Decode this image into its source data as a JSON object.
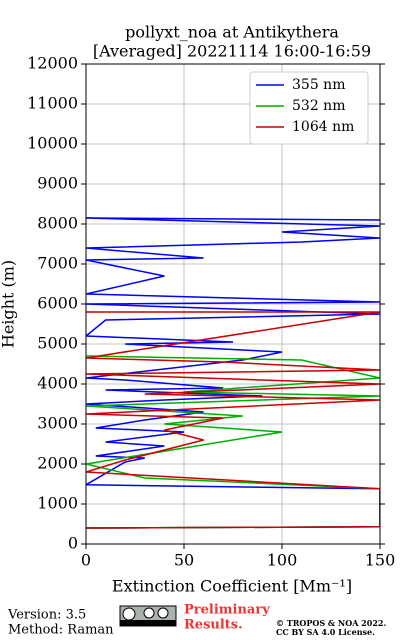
{
  "chart_data": {
    "type": "line",
    "title": "pollyxt_noa at Antikythera",
    "subtitle": "[Averaged] 20221114 16:00-16:59",
    "x_label": "Extinction Coefficient [Mm⁻¹]",
    "y_label": "Height (m)",
    "xlim": [
      0,
      150
    ],
    "xticks": [
      0,
      50,
      100,
      150
    ],
    "ylim": [
      0,
      12000
    ],
    "yticks": [
      0,
      1000,
      2000,
      3000,
      4000,
      5000,
      6000,
      7000,
      8000,
      9000,
      10000,
      11000,
      12000
    ],
    "grid": true,
    "legend": "upper right",
    "series": [
      {
        "name": "355 nm",
        "color": "#0000ff",
        "x": [
          0,
          150,
          150,
          0,
          20,
          30,
          5,
          40,
          10,
          50,
          5,
          30,
          60,
          0,
          40,
          90,
          10,
          70,
          20,
          0,
          80,
          100,
          20,
          75,
          0,
          10,
          150,
          0,
          150,
          0,
          40,
          0,
          60,
          0,
          110,
          150,
          100,
          150,
          0,
          150
        ],
        "y": [
          400,
          430,
          1380,
          1480,
          2050,
          2150,
          2200,
          2450,
          2550,
          2800,
          2900,
          3100,
          3300,
          3500,
          3600,
          3700,
          3850,
          3900,
          4100,
          4150,
          4600,
          4800,
          5000,
          5050,
          5200,
          5600,
          5750,
          6000,
          6050,
          6250,
          6700,
          7100,
          7150,
          7400,
          7550,
          7650,
          7800,
          7950,
          8150,
          8100
        ]
      },
      {
        "name": "532 nm",
        "color": "#00b000",
        "x": [
          0,
          150,
          150,
          30,
          0,
          50,
          100,
          40,
          80,
          0,
          150,
          50,
          150,
          110,
          0
        ],
        "y": [
          400,
          430,
          1380,
          1650,
          2000,
          2400,
          2800,
          3000,
          3200,
          3450,
          3700,
          3800,
          4150,
          4600,
          4700
        ]
      },
      {
        "name": "1064 nm",
        "color": "#cc0000",
        "x": [
          0,
          150,
          150,
          0,
          20,
          60,
          40,
          70,
          0,
          150,
          30,
          150,
          60,
          0,
          150,
          70,
          0,
          150,
          0
        ],
        "y": [
          400,
          430,
          1380,
          1800,
          2100,
          2600,
          2850,
          3150,
          3250,
          3600,
          3750,
          4000,
          4150,
          4250,
          4350,
          4550,
          4650,
          5800,
          5800
        ]
      }
    ]
  },
  "footer": {
    "version": "Version: 3.5",
    "method": "Method: Raman",
    "preliminary": "Preliminary",
    "results": "Results.",
    "copyright": "© TROPOS & NOA 2022.",
    "license": "CC BY SA 4.0 License."
  }
}
